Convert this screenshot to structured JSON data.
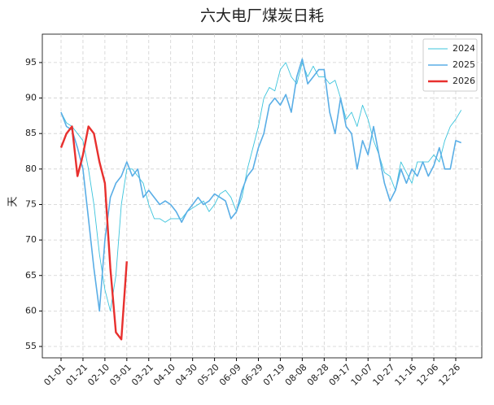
{
  "chart_data": {
    "type": "line",
    "title": "六大电厂煤炭日耗",
    "y_label": "天",
    "categories": [
      "01-01",
      "01-06",
      "01-11",
      "01-16",
      "01-21",
      "01-26",
      "01-31",
      "02-05",
      "02-10",
      "02-15",
      "02-20",
      "02-25",
      "03-01",
      "03-06",
      "03-11",
      "03-16",
      "03-21",
      "03-26",
      "03-31",
      "04-05",
      "04-10",
      "04-15",
      "04-20",
      "04-25",
      "04-30",
      "05-05",
      "05-10",
      "05-15",
      "05-20",
      "05-25",
      "05-30",
      "06-04",
      "06-09",
      "06-14",
      "06-19",
      "06-24",
      "06-29",
      "07-04",
      "07-09",
      "07-14",
      "07-19",
      "07-24",
      "07-29",
      "08-03",
      "08-08",
      "08-13",
      "08-18",
      "08-23",
      "08-28",
      "09-02",
      "09-07",
      "09-12",
      "09-17",
      "09-22",
      "09-27",
      "10-02",
      "10-07",
      "10-12",
      "10-17",
      "10-22",
      "10-27",
      "11-01",
      "11-06",
      "11-11",
      "11-16",
      "11-21",
      "11-26",
      "12-01",
      "12-06",
      "12-11",
      "12-16",
      "12-21",
      "12-26",
      "12-31"
    ],
    "xticks": [
      "01-01",
      "01-21",
      "02-10",
      "03-01",
      "03-21",
      "04-10",
      "04-30",
      "05-20",
      "06-09",
      "06-29",
      "07-19",
      "08-08",
      "08-28",
      "09-17",
      "10-07",
      "10-27",
      "11-16",
      "12-06",
      "12-26"
    ],
    "series": [
      {
        "name": "2024",
        "color": "#3cc4dc",
        "width": 0.9,
        "values": [
          88,
          86.5,
          86,
          85,
          84,
          80,
          75,
          68,
          63,
          60,
          65,
          75,
          80,
          80,
          79,
          78,
          75,
          73,
          73,
          72.5,
          73,
          73,
          73,
          74,
          74.5,
          75,
          75.5,
          74,
          75,
          76.5,
          77,
          76,
          74,
          76,
          80,
          83,
          86,
          90,
          91.5,
          91,
          94,
          95,
          93,
          92,
          95,
          93,
          94.5,
          93,
          93,
          92,
          92.5,
          90,
          87,
          88,
          86,
          89,
          87,
          84,
          82,
          79.5,
          79,
          77,
          81,
          79.5,
          78,
          81,
          81,
          81,
          82,
          81,
          84,
          86,
          87,
          88.3
        ]
      },
      {
        "name": "2025",
        "color": "#5aaee6",
        "width": 1.6,
        "values": [
          88,
          86,
          85.5,
          83,
          80,
          73,
          66,
          60,
          70,
          76,
          78,
          79,
          81,
          79,
          80,
          76,
          77,
          76,
          75,
          75.5,
          75,
          74,
          72.5,
          74,
          75,
          76,
          75,
          75.5,
          76.5,
          76,
          75.5,
          73,
          74,
          77,
          79,
          80,
          83,
          85,
          89,
          90,
          89,
          90.5,
          88,
          93,
          95.5,
          92,
          93,
          94,
          94,
          88,
          85,
          90,
          86,
          85,
          80,
          84,
          82,
          86,
          82,
          78,
          75.5,
          77,
          80,
          78,
          80,
          79,
          81,
          79,
          80.5,
          83,
          80,
          80,
          84,
          83.7
        ]
      },
      {
        "name": "2026",
        "color": "#e8302e",
        "width": 2.4,
        "values": [
          83,
          85,
          86,
          79,
          82,
          86,
          85,
          81,
          78,
          66,
          57,
          56,
          67,
          null,
          null,
          null,
          null,
          null,
          null,
          null,
          null,
          null,
          null,
          null,
          null,
          null,
          null,
          null,
          null,
          null,
          null,
          null,
          null,
          null,
          null,
          null,
          null,
          null,
          null,
          null,
          null,
          null,
          null,
          null,
          null,
          null,
          null,
          null,
          null,
          null,
          null,
          null,
          null,
          null,
          null,
          null,
          null,
          null,
          null,
          null,
          null,
          null,
          null,
          null,
          null,
          null,
          null,
          null,
          null,
          null,
          null,
          null,
          null,
          null
        ]
      }
    ],
    "ylim": [
      53.4,
      99
    ],
    "yticks": [
      55,
      60,
      65,
      70,
      75,
      80,
      85,
      90,
      95
    ],
    "grid": true,
    "legend": "upper-right"
  }
}
